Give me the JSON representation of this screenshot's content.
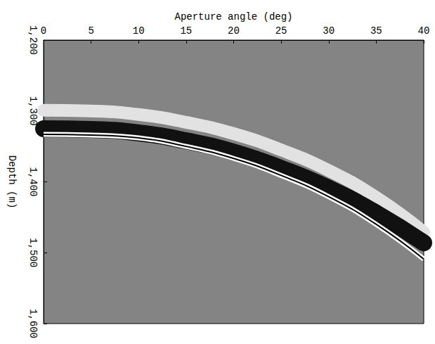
{
  "chart_data": {
    "type": "line",
    "x_label": "Aperture angle (deg)",
    "y_label": "Depth (m)",
    "x": [
      0,
      5,
      10,
      15,
      20,
      25,
      30,
      35,
      40
    ],
    "series": [
      {
        "color": "#e2e2e2",
        "line_style": "band",
        "values": [
          1299,
          1300,
          1305,
          1316,
          1332,
          1355,
          1384,
          1422,
          1471
        ]
      },
      {
        "color": "#111111",
        "line_style": "band",
        "values": [
          1325,
          1326,
          1331,
          1342,
          1358,
          1381,
          1409,
          1444,
          1486
        ]
      },
      {
        "color": "#ffffff",
        "line_style": "double",
        "values": [
          1333,
          1334,
          1338,
          1350,
          1367,
          1391,
          1421,
          1460,
          1509
        ]
      }
    ],
    "xlim": [
      0,
      40
    ],
    "xticks": [
      0,
      5,
      10,
      15,
      20,
      25,
      30,
      35,
      40
    ],
    "ylim": [
      1200,
      1600
    ],
    "yticks": [
      1200,
      1300,
      1400,
      1500,
      1600
    ],
    "grid": false
  }
}
